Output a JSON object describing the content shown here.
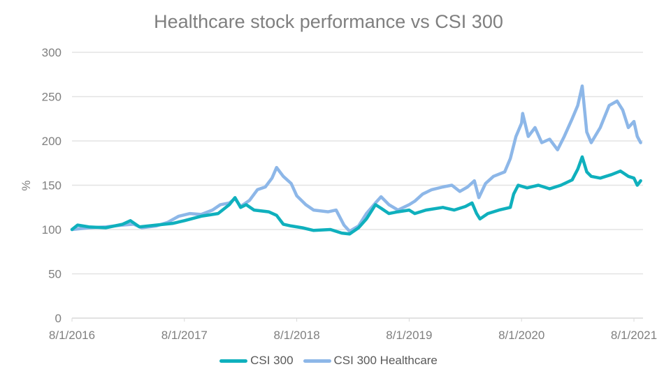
{
  "chart_data": {
    "type": "line",
    "title": "Healthcare stock performance vs CSI 300",
    "xlabel": "",
    "ylabel": "%",
    "ylim": [
      0,
      300
    ],
    "yticks": [
      0,
      50,
      100,
      150,
      200,
      250,
      300
    ],
    "xticks": [
      "8/1/2016",
      "8/1/2017",
      "8/1/2018",
      "8/1/2019",
      "8/1/2020",
      "8/1/2021"
    ],
    "x_unit": "years since 8/1/2016",
    "grid": true,
    "legend": "bottom",
    "colors": {
      "CSI 300": "#0fb0bd",
      "CSI 300 Healthcare": "#8db7e8"
    },
    "series": [
      {
        "name": "CSI 300",
        "points": [
          [
            0,
            100
          ],
          [
            0.05,
            105
          ],
          [
            0.15,
            103
          ],
          [
            0.3,
            102
          ],
          [
            0.45,
            106
          ],
          [
            0.52,
            110
          ],
          [
            0.6,
            103
          ],
          [
            0.75,
            105
          ],
          [
            0.9,
            107
          ],
          [
            1.0,
            110
          ],
          [
            1.15,
            115
          ],
          [
            1.3,
            118
          ],
          [
            1.4,
            128
          ],
          [
            1.45,
            136
          ],
          [
            1.5,
            125
          ],
          [
            1.55,
            128
          ],
          [
            1.62,
            122
          ],
          [
            1.75,
            120
          ],
          [
            1.82,
            116
          ],
          [
            1.88,
            106
          ],
          [
            1.95,
            104
          ],
          [
            2.05,
            102
          ],
          [
            2.15,
            99
          ],
          [
            2.3,
            100
          ],
          [
            2.4,
            96
          ],
          [
            2.47,
            95
          ],
          [
            2.55,
            102
          ],
          [
            2.62,
            112
          ],
          [
            2.7,
            128
          ],
          [
            2.75,
            124
          ],
          [
            2.82,
            118
          ],
          [
            2.9,
            120
          ],
          [
            3.0,
            122
          ],
          [
            3.05,
            118
          ],
          [
            3.15,
            122
          ],
          [
            3.3,
            125
          ],
          [
            3.4,
            122
          ],
          [
            3.5,
            126
          ],
          [
            3.56,
            130
          ],
          [
            3.6,
            118
          ],
          [
            3.63,
            112
          ],
          [
            3.7,
            118
          ],
          [
            3.8,
            122
          ],
          [
            3.9,
            125
          ],
          [
            3.93,
            140
          ],
          [
            3.97,
            150
          ],
          [
            4.05,
            147
          ],
          [
            4.15,
            150
          ],
          [
            4.25,
            146
          ],
          [
            4.35,
            150
          ],
          [
            4.45,
            156
          ],
          [
            4.5,
            168
          ],
          [
            4.54,
            182
          ],
          [
            4.58,
            165
          ],
          [
            4.62,
            160
          ],
          [
            4.7,
            158
          ],
          [
            4.8,
            162
          ],
          [
            4.88,
            166
          ],
          [
            4.95,
            160
          ],
          [
            5.0,
            158
          ],
          [
            5.03,
            150
          ],
          [
            5.06,
            155
          ]
        ]
      },
      {
        "name": "CSI 300 Healthcare",
        "points": [
          [
            0,
            100
          ],
          [
            0.15,
            102
          ],
          [
            0.3,
            103
          ],
          [
            0.45,
            105
          ],
          [
            0.55,
            106
          ],
          [
            0.62,
            102
          ],
          [
            0.75,
            104
          ],
          [
            0.85,
            108
          ],
          [
            0.95,
            115
          ],
          [
            1.05,
            118
          ],
          [
            1.15,
            117
          ],
          [
            1.25,
            122
          ],
          [
            1.32,
            128
          ],
          [
            1.4,
            130
          ],
          [
            1.45,
            135
          ],
          [
            1.5,
            126
          ],
          [
            1.58,
            133
          ],
          [
            1.65,
            145
          ],
          [
            1.72,
            148
          ],
          [
            1.78,
            158
          ],
          [
            1.82,
            170
          ],
          [
            1.88,
            160
          ],
          [
            1.95,
            152
          ],
          [
            2.0,
            138
          ],
          [
            2.08,
            128
          ],
          [
            2.15,
            122
          ],
          [
            2.28,
            120
          ],
          [
            2.35,
            122
          ],
          [
            2.42,
            105
          ],
          [
            2.47,
            98
          ],
          [
            2.55,
            104
          ],
          [
            2.62,
            118
          ],
          [
            2.7,
            130
          ],
          [
            2.75,
            137
          ],
          [
            2.82,
            128
          ],
          [
            2.9,
            122
          ],
          [
            3.0,
            128
          ],
          [
            3.05,
            132
          ],
          [
            3.12,
            140
          ],
          [
            3.2,
            145
          ],
          [
            3.3,
            148
          ],
          [
            3.38,
            150
          ],
          [
            3.45,
            143
          ],
          [
            3.52,
            148
          ],
          [
            3.58,
            155
          ],
          [
            3.62,
            136
          ],
          [
            3.68,
            152
          ],
          [
            3.75,
            160
          ],
          [
            3.85,
            165
          ],
          [
            3.9,
            180
          ],
          [
            3.95,
            205
          ],
          [
            4.0,
            220
          ],
          [
            4.01,
            231
          ],
          [
            4.06,
            205
          ],
          [
            4.12,
            215
          ],
          [
            4.18,
            198
          ],
          [
            4.25,
            202
          ],
          [
            4.32,
            190
          ],
          [
            4.38,
            205
          ],
          [
            4.45,
            225
          ],
          [
            4.5,
            240
          ],
          [
            4.54,
            262
          ],
          [
            4.58,
            210
          ],
          [
            4.62,
            198
          ],
          [
            4.7,
            215
          ],
          [
            4.78,
            240
          ],
          [
            4.85,
            245
          ],
          [
            4.9,
            235
          ],
          [
            4.95,
            215
          ],
          [
            5.0,
            222
          ],
          [
            5.03,
            205
          ],
          [
            5.06,
            198
          ]
        ]
      }
    ]
  }
}
